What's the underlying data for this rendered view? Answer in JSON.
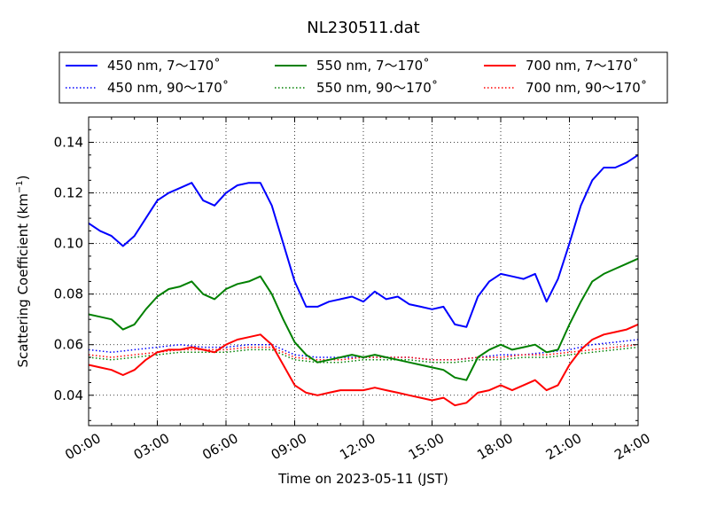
{
  "chart_data": {
    "type": "line",
    "title": "NL230511.dat",
    "xlabel": "Time on 2023-05-11 (JST)",
    "ylabel_main": "Scattering Coefficient (km",
    "ylabel_sup": "−1",
    "ylabel_close": ")",
    "xlim_hours": [
      0,
      24
    ],
    "ylim": [
      0.028,
      0.15
    ],
    "x_ticks": [
      {
        "hour": 0,
        "label": "00:00"
      },
      {
        "hour": 3,
        "label": "03:00"
      },
      {
        "hour": 6,
        "label": "06:00"
      },
      {
        "hour": 9,
        "label": "09:00"
      },
      {
        "hour": 12,
        "label": "12:00"
      },
      {
        "hour": 15,
        "label": "15:00"
      },
      {
        "hour": 18,
        "label": "18:00"
      },
      {
        "hour": 21,
        "label": "21:00"
      },
      {
        "hour": 24,
        "label": "24:00"
      }
    ],
    "y_ticks": [
      {
        "value": 0.04,
        "label": "0.04"
      },
      {
        "value": 0.06,
        "label": "0.06"
      },
      {
        "value": 0.08,
        "label": "0.08"
      },
      {
        "value": 0.1,
        "label": "0.10"
      },
      {
        "value": 0.12,
        "label": "0.12"
      },
      {
        "value": 0.14,
        "label": "0.14"
      }
    ],
    "grid": true,
    "legend_placement": "top",
    "legend": [
      {
        "label": "450 nm, 7～170˚",
        "color": "#0000ff",
        "style": "solid"
      },
      {
        "label": "550 nm, 7～170˚",
        "color": "#008000",
        "style": "solid"
      },
      {
        "label": "700 nm, 7～170˚",
        "color": "#ff0000",
        "style": "solid"
      },
      {
        "label": "450 nm, 90～170˚",
        "color": "#0000ff",
        "style": "dotted"
      },
      {
        "label": "550 nm, 90～170˚",
        "color": "#008000",
        "style": "dotted"
      },
      {
        "label": "700 nm, 90～170˚",
        "color": "#ff0000",
        "style": "dotted"
      }
    ],
    "series": [
      {
        "color": "#0000ff",
        "style": "solid",
        "x": [
          0,
          0.5,
          1,
          1.5,
          2,
          2.5,
          3,
          3.5,
          4,
          4.5,
          5,
          5.5,
          6,
          6.5,
          7,
          7.5,
          8,
          8.5,
          9,
          9.5,
          10,
          10.5,
          11,
          11.5,
          12,
          12.5,
          13,
          13.5,
          14,
          14.5,
          15,
          15.5,
          16,
          16.5,
          17,
          17.5,
          18,
          18.5,
          19,
          19.5,
          20,
          20.5,
          21,
          21.5,
          22,
          22.5,
          23,
          23.5,
          24
        ],
        "y": [
          0.108,
          0.105,
          0.103,
          0.099,
          0.103,
          0.11,
          0.117,
          0.12,
          0.122,
          0.124,
          0.117,
          0.115,
          0.12,
          0.123,
          0.124,
          0.124,
          0.115,
          0.1,
          0.085,
          0.075,
          0.075,
          0.077,
          0.078,
          0.079,
          0.077,
          0.081,
          0.078,
          0.079,
          0.076,
          0.075,
          0.074,
          0.075,
          0.068,
          0.067,
          0.079,
          0.085,
          0.088,
          0.087,
          0.086,
          0.088,
          0.077,
          0.086,
          0.1,
          0.115,
          0.125,
          0.13,
          0.13,
          0.132,
          0.135
        ]
      },
      {
        "color": "#008000",
        "style": "solid",
        "x": [
          0,
          0.5,
          1,
          1.5,
          2,
          2.5,
          3,
          3.5,
          4,
          4.5,
          5,
          5.5,
          6,
          6.5,
          7,
          7.5,
          8,
          8.5,
          9,
          9.5,
          10,
          10.5,
          11,
          11.5,
          12,
          12.5,
          13,
          13.5,
          14,
          14.5,
          15,
          15.5,
          16,
          16.5,
          17,
          17.5,
          18,
          18.5,
          19,
          19.5,
          20,
          20.5,
          21,
          21.5,
          22,
          22.5,
          23,
          23.5,
          24
        ],
        "y": [
          0.072,
          0.071,
          0.07,
          0.066,
          0.068,
          0.074,
          0.079,
          0.082,
          0.083,
          0.085,
          0.08,
          0.078,
          0.082,
          0.084,
          0.085,
          0.087,
          0.08,
          0.07,
          0.061,
          0.056,
          0.053,
          0.054,
          0.055,
          0.056,
          0.055,
          0.056,
          0.055,
          0.054,
          0.053,
          0.052,
          0.051,
          0.05,
          0.047,
          0.046,
          0.055,
          0.058,
          0.06,
          0.058,
          0.059,
          0.06,
          0.057,
          0.058,
          0.068,
          0.077,
          0.085,
          0.088,
          0.09,
          0.092,
          0.094
        ]
      },
      {
        "color": "#ff0000",
        "style": "solid",
        "x": [
          0,
          0.5,
          1,
          1.5,
          2,
          2.5,
          3,
          3.5,
          4,
          4.5,
          5,
          5.5,
          6,
          6.5,
          7,
          7.5,
          8,
          8.5,
          9,
          9.5,
          10,
          10.5,
          11,
          11.5,
          12,
          12.5,
          13,
          13.5,
          14,
          14.5,
          15,
          15.5,
          16,
          16.5,
          17,
          17.5,
          18,
          18.5,
          19,
          19.5,
          20,
          20.5,
          21,
          21.5,
          22,
          22.5,
          23,
          23.5,
          24
        ],
        "y": [
          0.052,
          0.051,
          0.05,
          0.048,
          0.05,
          0.054,
          0.057,
          0.058,
          0.058,
          0.059,
          0.058,
          0.057,
          0.06,
          0.062,
          0.063,
          0.064,
          0.06,
          0.052,
          0.044,
          0.041,
          0.04,
          0.041,
          0.042,
          0.042,
          0.042,
          0.043,
          0.042,
          0.041,
          0.04,
          0.039,
          0.038,
          0.039,
          0.036,
          0.037,
          0.041,
          0.042,
          0.044,
          0.042,
          0.044,
          0.046,
          0.042,
          0.044,
          0.052,
          0.058,
          0.062,
          0.064,
          0.065,
          0.066,
          0.068
        ]
      },
      {
        "color": "#0000ff",
        "style": "dotted",
        "x": [
          0,
          1,
          2,
          3,
          4,
          5,
          6,
          7,
          8,
          9,
          10,
          11,
          12,
          13,
          14,
          15,
          16,
          17,
          18,
          19,
          20,
          21,
          22,
          23,
          24
        ],
        "y": [
          0.058,
          0.057,
          0.058,
          0.059,
          0.06,
          0.059,
          0.059,
          0.06,
          0.06,
          0.056,
          0.055,
          0.055,
          0.055,
          0.055,
          0.055,
          0.054,
          0.054,
          0.055,
          0.056,
          0.056,
          0.057,
          0.058,
          0.06,
          0.061,
          0.062
        ]
      },
      {
        "color": "#008000",
        "style": "dotted",
        "x": [
          0,
          1,
          2,
          3,
          4,
          5,
          6,
          7,
          8,
          9,
          10,
          11,
          12,
          13,
          14,
          15,
          16,
          17,
          18,
          19,
          20,
          21,
          22,
          23,
          24
        ],
        "y": [
          0.055,
          0.054,
          0.055,
          0.056,
          0.057,
          0.057,
          0.057,
          0.058,
          0.058,
          0.054,
          0.053,
          0.053,
          0.054,
          0.054,
          0.054,
          0.053,
          0.053,
          0.054,
          0.054,
          0.055,
          0.055,
          0.056,
          0.057,
          0.058,
          0.059
        ]
      },
      {
        "color": "#ff0000",
        "style": "dotted",
        "x": [
          0,
          1,
          2,
          3,
          4,
          5,
          6,
          7,
          8,
          9,
          10,
          11,
          12,
          13,
          14,
          15,
          16,
          17,
          18,
          19,
          20,
          21,
          22,
          23,
          24
        ],
        "y": [
          0.056,
          0.055,
          0.056,
          0.057,
          0.058,
          0.058,
          0.058,
          0.059,
          0.059,
          0.055,
          0.054,
          0.054,
          0.055,
          0.055,
          0.055,
          0.054,
          0.054,
          0.055,
          0.055,
          0.056,
          0.056,
          0.057,
          0.058,
          0.059,
          0.06
        ]
      }
    ]
  }
}
